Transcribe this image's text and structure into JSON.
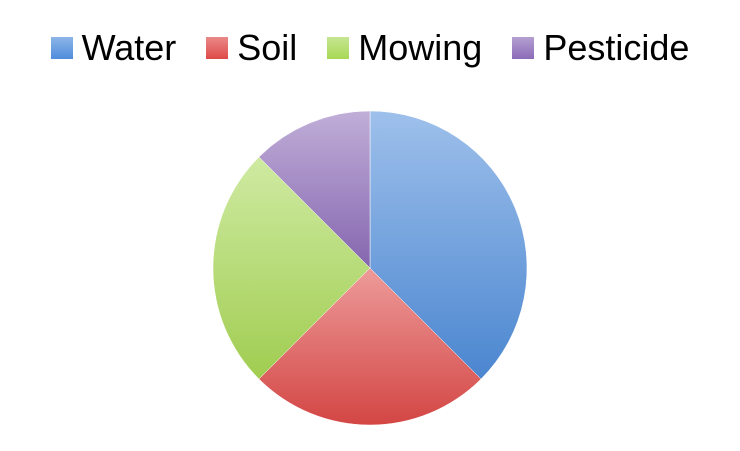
{
  "chart_data": {
    "type": "pie",
    "title": "",
    "legend_position": "top",
    "start_angle_deg": 0,
    "direction": "clockwise",
    "series": [
      {
        "categories": [
          "Water",
          "Soil",
          "Mowing",
          "Pesticide"
        ],
        "values": [
          37.5,
          25,
          25,
          12.5
        ],
        "colors": [
          "#4f8ddb",
          "#de4a48",
          "#a8d855",
          "#8c6bb8"
        ]
      }
    ]
  }
}
